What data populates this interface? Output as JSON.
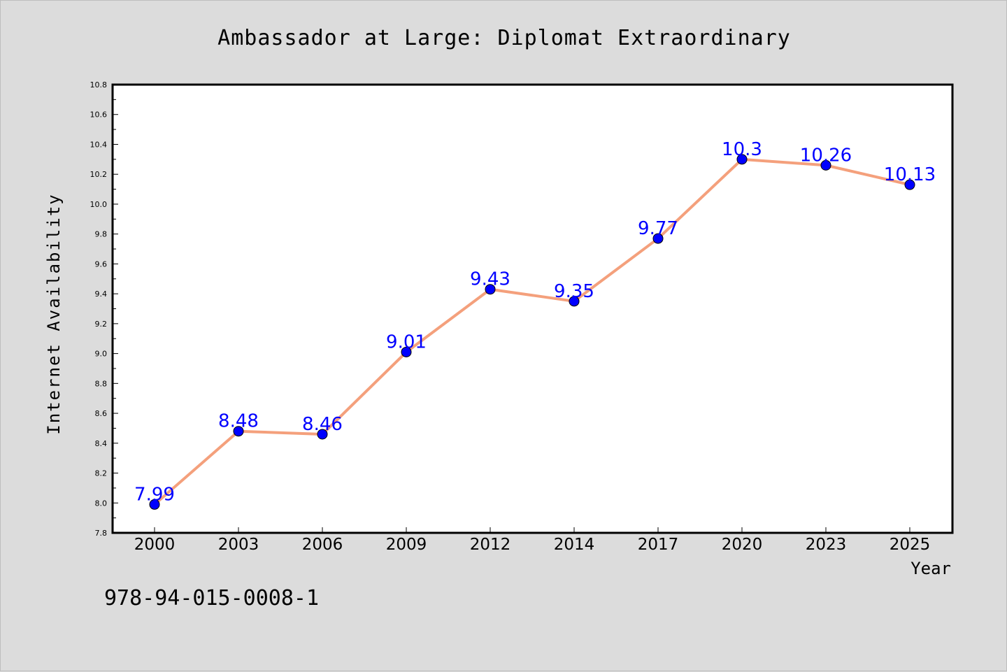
{
  "footer_code": "978-94-015-0008-1",
  "chart_data": {
    "type": "line",
    "title": "Ambassador at Large: Diplomat Extraordinary",
    "xlabel": "Year",
    "ylabel": "Internet Availability",
    "categories": [
      "2000",
      "2003",
      "2006",
      "2009",
      "2012",
      "2014",
      "2017",
      "2020",
      "2023",
      "2025"
    ],
    "series": [
      {
        "values": [
          7.99,
          8.48,
          8.46,
          9.01,
          9.43,
          9.35,
          9.77,
          10.3,
          10.26,
          10.13
        ],
        "labels": [
          "7.99",
          "8.48",
          "8.46",
          "9.01",
          "9.43",
          "9.35",
          "9.77",
          "10.3",
          "10.26",
          "10.13"
        ],
        "line_color": "#f4a07c",
        "marker_color": "#0000ff"
      }
    ],
    "ylim": [
      7.8,
      10.8
    ],
    "yticks": [
      "7.8",
      "8.0",
      "8.2",
      "8.4",
      "8.6",
      "8.8",
      "9.0",
      "9.2",
      "9.4",
      "9.6",
      "9.8",
      "10.0",
      "10.2",
      "10.4",
      "10.6",
      "10.8"
    ],
    "grid": false,
    "legend": "none"
  }
}
